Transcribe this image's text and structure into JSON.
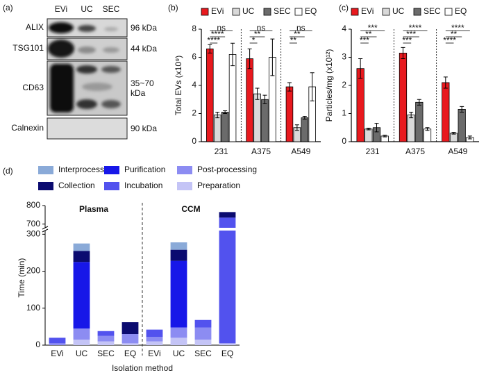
{
  "blot": {
    "panel_label": "(a)",
    "lanes": [
      "EVi",
      "UC",
      "SEC"
    ],
    "rows": [
      {
        "protein": "ALIX",
        "size": "96 kDa"
      },
      {
        "protein": "TSG101",
        "size": "44 kDa"
      },
      {
        "protein": "CD63",
        "size": "35~70 kDa"
      },
      {
        "protein": "Calnexin",
        "size": "90 kDa"
      }
    ]
  },
  "chart_data": [
    {
      "type": "bar",
      "panel_label": "(b)",
      "y_label": "Total EVs (x10⁹)",
      "categories": [
        "231",
        "A375",
        "A549"
      ],
      "series": [
        {
          "name": "EVi",
          "color": "#e8191e",
          "values": [
            6.6,
            5.9,
            3.9
          ],
          "errors": [
            0.3,
            0.7,
            0.3
          ]
        },
        {
          "name": "UC",
          "color": "#d9d9d9",
          "values": [
            1.9,
            3.4,
            1.0
          ],
          "errors": [
            0.2,
            0.4,
            0.2
          ]
        },
        {
          "name": "SEC",
          "color": "#6b6b6b",
          "values": [
            2.1,
            3.0,
            1.7
          ],
          "errors": [
            0.1,
            0.3,
            0.1
          ]
        },
        {
          "name": "EQ",
          "color": "#ffffff",
          "values": [
            6.2,
            6.0,
            3.9
          ],
          "errors": [
            0.8,
            1.3,
            1.0
          ]
        }
      ],
      "ylim": [
        0,
        8
      ],
      "yticks": [
        0,
        2,
        4,
        6,
        8
      ],
      "significance": [
        [
          "****",
          "****",
          "ns"
        ],
        [
          "*",
          "**",
          "ns"
        ],
        [
          "**",
          "**",
          "ns"
        ]
      ]
    },
    {
      "type": "bar",
      "panel_label": "(c)",
      "y_label": "Particles/mg (x10¹²)",
      "categories": [
        "231",
        "A375",
        "A549"
      ],
      "series": [
        {
          "name": "EVi",
          "color": "#e8191e",
          "values": [
            2.6,
            3.15,
            2.1
          ],
          "errors": [
            0.35,
            0.2,
            0.2
          ]
        },
        {
          "name": "UC",
          "color": "#d9d9d9",
          "values": [
            0.45,
            0.95,
            0.3
          ],
          "errors": [
            0.03,
            0.1,
            0.03
          ]
        },
        {
          "name": "SEC",
          "color": "#6b6b6b",
          "values": [
            0.5,
            1.4,
            1.15
          ],
          "errors": [
            0.15,
            0.1,
            0.1
          ]
        },
        {
          "name": "EQ",
          "color": "#ffffff",
          "values": [
            0.2,
            0.45,
            0.15
          ],
          "errors": [
            0.03,
            0.05,
            0.05
          ]
        }
      ],
      "ylim": [
        0,
        4
      ],
      "yticks": [
        0,
        1,
        2,
        3,
        4
      ],
      "significance": [
        [
          "***",
          "**",
          "***"
        ],
        [
          "***",
          "***",
          "****"
        ],
        [
          "****",
          "**",
          "****"
        ]
      ]
    },
    {
      "type": "stacked_bar",
      "panel_label": "(d)",
      "y_label": "Time (min)",
      "x_label": "Isolation method",
      "groups": [
        "Plasma",
        "CCM"
      ],
      "categories": [
        "EVi",
        "UC",
        "SEC",
        "EQ",
        "EVi",
        "UC",
        "SEC",
        "EQ"
      ],
      "series": [
        {
          "name": "Interprocess",
          "color": "#8aaad8",
          "values": [
            0,
            20,
            0,
            0,
            0,
            20,
            0,
            0
          ]
        },
        {
          "name": "Collection",
          "color": "#0b0b70",
          "values": [
            0,
            30,
            0,
            32,
            0,
            30,
            0,
            30
          ]
        },
        {
          "name": "Purification",
          "color": "#1717e8",
          "values": [
            0,
            180,
            0,
            0,
            0,
            180,
            0,
            0
          ]
        },
        {
          "name": "Incubation",
          "color": "#5252ee",
          "values": [
            15,
            0,
            13,
            0,
            20,
            0,
            20,
            730
          ]
        },
        {
          "name": "Post-processing",
          "color": "#8c8cf2",
          "values": [
            5,
            30,
            15,
            25,
            12,
            28,
            33,
            0
          ]
        },
        {
          "name": "Preparation",
          "color": "#c4c4f6",
          "values": [
            0,
            15,
            10,
            5,
            10,
            20,
            15,
            5
          ]
        }
      ],
      "ylim": [
        0,
        800
      ],
      "ybreak": [
        310,
        680
      ],
      "yticks": [
        0,
        100,
        200,
        300,
        700,
        800
      ]
    }
  ]
}
